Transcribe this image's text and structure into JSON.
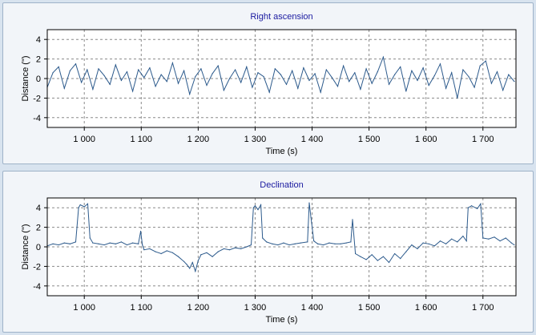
{
  "chart_data": [
    {
      "type": "line",
      "title": "Right ascension",
      "xlabel": "Time (s)",
      "ylabel": "Distance (\")",
      "xlim": [
        935,
        1758
      ],
      "ylim": [
        -5,
        5
      ],
      "xticks": [
        1000,
        1100,
        1200,
        1300,
        1400,
        1500,
        1600,
        1700
      ],
      "xtick_labels": [
        "1 000",
        "1 100",
        "1 200",
        "1 300",
        "1 400",
        "1 500",
        "1 600",
        "1 700"
      ],
      "yticks": [
        4,
        2,
        0,
        -2,
        -4
      ],
      "ytick_labels": [
        "4",
        "2",
        "0",
        "-2",
        "-4"
      ],
      "grid": true,
      "line_color": "#2c5a8c",
      "series": [
        {
          "x": [
            935,
            945,
            955,
            965,
            975,
            985,
            995,
            1005,
            1015,
            1025,
            1035,
            1045,
            1055,
            1065,
            1075,
            1085,
            1095,
            1105,
            1115,
            1125,
            1135,
            1145,
            1155,
            1165,
            1175,
            1185,
            1195,
            1205,
            1215,
            1225,
            1235,
            1245,
            1255,
            1265,
            1275,
            1285,
            1295,
            1305,
            1315,
            1325,
            1335,
            1345,
            1355,
            1365,
            1375,
            1385,
            1395,
            1405,
            1415,
            1425,
            1435,
            1445,
            1455,
            1465,
            1475,
            1485,
            1495,
            1505,
            1515,
            1525,
            1535,
            1545,
            1555,
            1565,
            1575,
            1585,
            1595,
            1605,
            1615,
            1625,
            1635,
            1645,
            1655,
            1665,
            1675,
            1685,
            1695,
            1705,
            1715,
            1725,
            1735,
            1745,
            1755
          ],
          "y": [
            -0.9,
            0.6,
            1.2,
            -1.0,
            0.8,
            1.5,
            -0.4,
            0.9,
            -1.1,
            1.0,
            0.3,
            -0.6,
            1.4,
            -0.2,
            0.7,
            -1.3,
            0.9,
            0.1,
            1.1,
            -0.8,
            0.4,
            -0.3,
            1.6,
            -0.5,
            0.8,
            -1.6,
            0.2,
            1.0,
            -0.7,
            0.5,
            1.3,
            -1.2,
            0.0,
            0.9,
            -0.4,
            1.2,
            -0.9,
            0.6,
            0.2,
            -1.4,
            1.0,
            0.4,
            -0.6,
            0.8,
            -1.0,
            1.1,
            -0.2,
            0.5,
            -1.4,
            0.9,
            0.1,
            -0.8,
            1.3,
            -0.3,
            0.6,
            -1.1,
            1.0,
            -0.5,
            0.7,
            2.2,
            -0.6,
            0.4,
            1.2,
            -1.3,
            0.8,
            -0.2,
            1.1,
            -0.7,
            0.3,
            1.5,
            -1.0,
            0.6,
            -2.0,
            0.9,
            0.2,
            -0.9,
            1.3,
            1.8,
            -0.5,
            0.7,
            -1.2,
            0.4,
            -0.3
          ]
        }
      ]
    },
    {
      "type": "line",
      "title": "Declination",
      "xlabel": "Time (s)",
      "ylabel": "Distance (\")",
      "xlim": [
        935,
        1758
      ],
      "ylim": [
        -5,
        5
      ],
      "xticks": [
        1000,
        1100,
        1200,
        1300,
        1400,
        1500,
        1600,
        1700
      ],
      "xtick_labels": [
        "1 000",
        "1 100",
        "1 200",
        "1 300",
        "1 400",
        "1 500",
        "1 600",
        "1 700"
      ],
      "yticks": [
        4,
        2,
        0,
        -2,
        -4
      ],
      "ytick_labels": [
        "4",
        "2",
        "0",
        "-2",
        "-4"
      ],
      "grid": true,
      "line_color": "#2c5a8c",
      "series": [
        {
          "x": [
            935,
            945,
            955,
            965,
            975,
            985,
            990,
            993,
            1000,
            1006,
            1010,
            1015,
            1025,
            1035,
            1045,
            1055,
            1065,
            1075,
            1085,
            1095,
            1099,
            1102,
            1105,
            1115,
            1125,
            1135,
            1145,
            1155,
            1165,
            1175,
            1180,
            1185,
            1190,
            1195,
            1200,
            1205,
            1215,
            1225,
            1235,
            1245,
            1255,
            1265,
            1275,
            1285,
            1293,
            1297,
            1300,
            1305,
            1310,
            1313,
            1320,
            1330,
            1340,
            1350,
            1360,
            1370,
            1380,
            1392,
            1395,
            1398,
            1403,
            1410,
            1420,
            1430,
            1440,
            1450,
            1460,
            1468,
            1471,
            1476,
            1485,
            1495,
            1505,
            1515,
            1525,
            1535,
            1545,
            1555,
            1565,
            1575,
            1585,
            1595,
            1605,
            1615,
            1625,
            1635,
            1645,
            1655,
            1665,
            1671,
            1674,
            1680,
            1690,
            1696,
            1700,
            1710,
            1720,
            1730,
            1740,
            1750,
            1755
          ],
          "y": [
            0.1,
            0.3,
            0.2,
            0.4,
            0.3,
            0.5,
            4.0,
            4.3,
            4.1,
            4.4,
            0.9,
            0.4,
            0.3,
            0.2,
            0.4,
            0.3,
            0.5,
            0.2,
            0.4,
            0.3,
            1.6,
            0.2,
            -0.3,
            -0.2,
            -0.5,
            -0.7,
            -0.4,
            -0.6,
            -1.0,
            -1.5,
            -1.8,
            -2.2,
            -1.6,
            -2.5,
            -1.4,
            -0.8,
            -0.6,
            -1.0,
            -0.5,
            -0.2,
            -0.3,
            -0.1,
            -0.2,
            0.0,
            0.2,
            4.0,
            4.2,
            3.8,
            4.3,
            0.9,
            0.5,
            0.3,
            0.2,
            0.4,
            0.2,
            0.3,
            0.4,
            0.5,
            4.5,
            3.0,
            0.6,
            0.3,
            0.2,
            0.4,
            0.3,
            0.3,
            0.4,
            0.5,
            2.8,
            -0.7,
            -1.0,
            -1.3,
            -0.8,
            -1.4,
            -1.0,
            -1.6,
            -0.7,
            -1.2,
            -0.5,
            0.2,
            -0.2,
            0.4,
            0.3,
            0.1,
            0.6,
            0.3,
            0.8,
            0.5,
            1.1,
            0.6,
            4.0,
            4.2,
            3.9,
            4.4,
            0.9,
            0.8,
            1.0,
            0.6,
            0.9,
            0.4,
            0.2
          ]
        }
      ]
    }
  ]
}
